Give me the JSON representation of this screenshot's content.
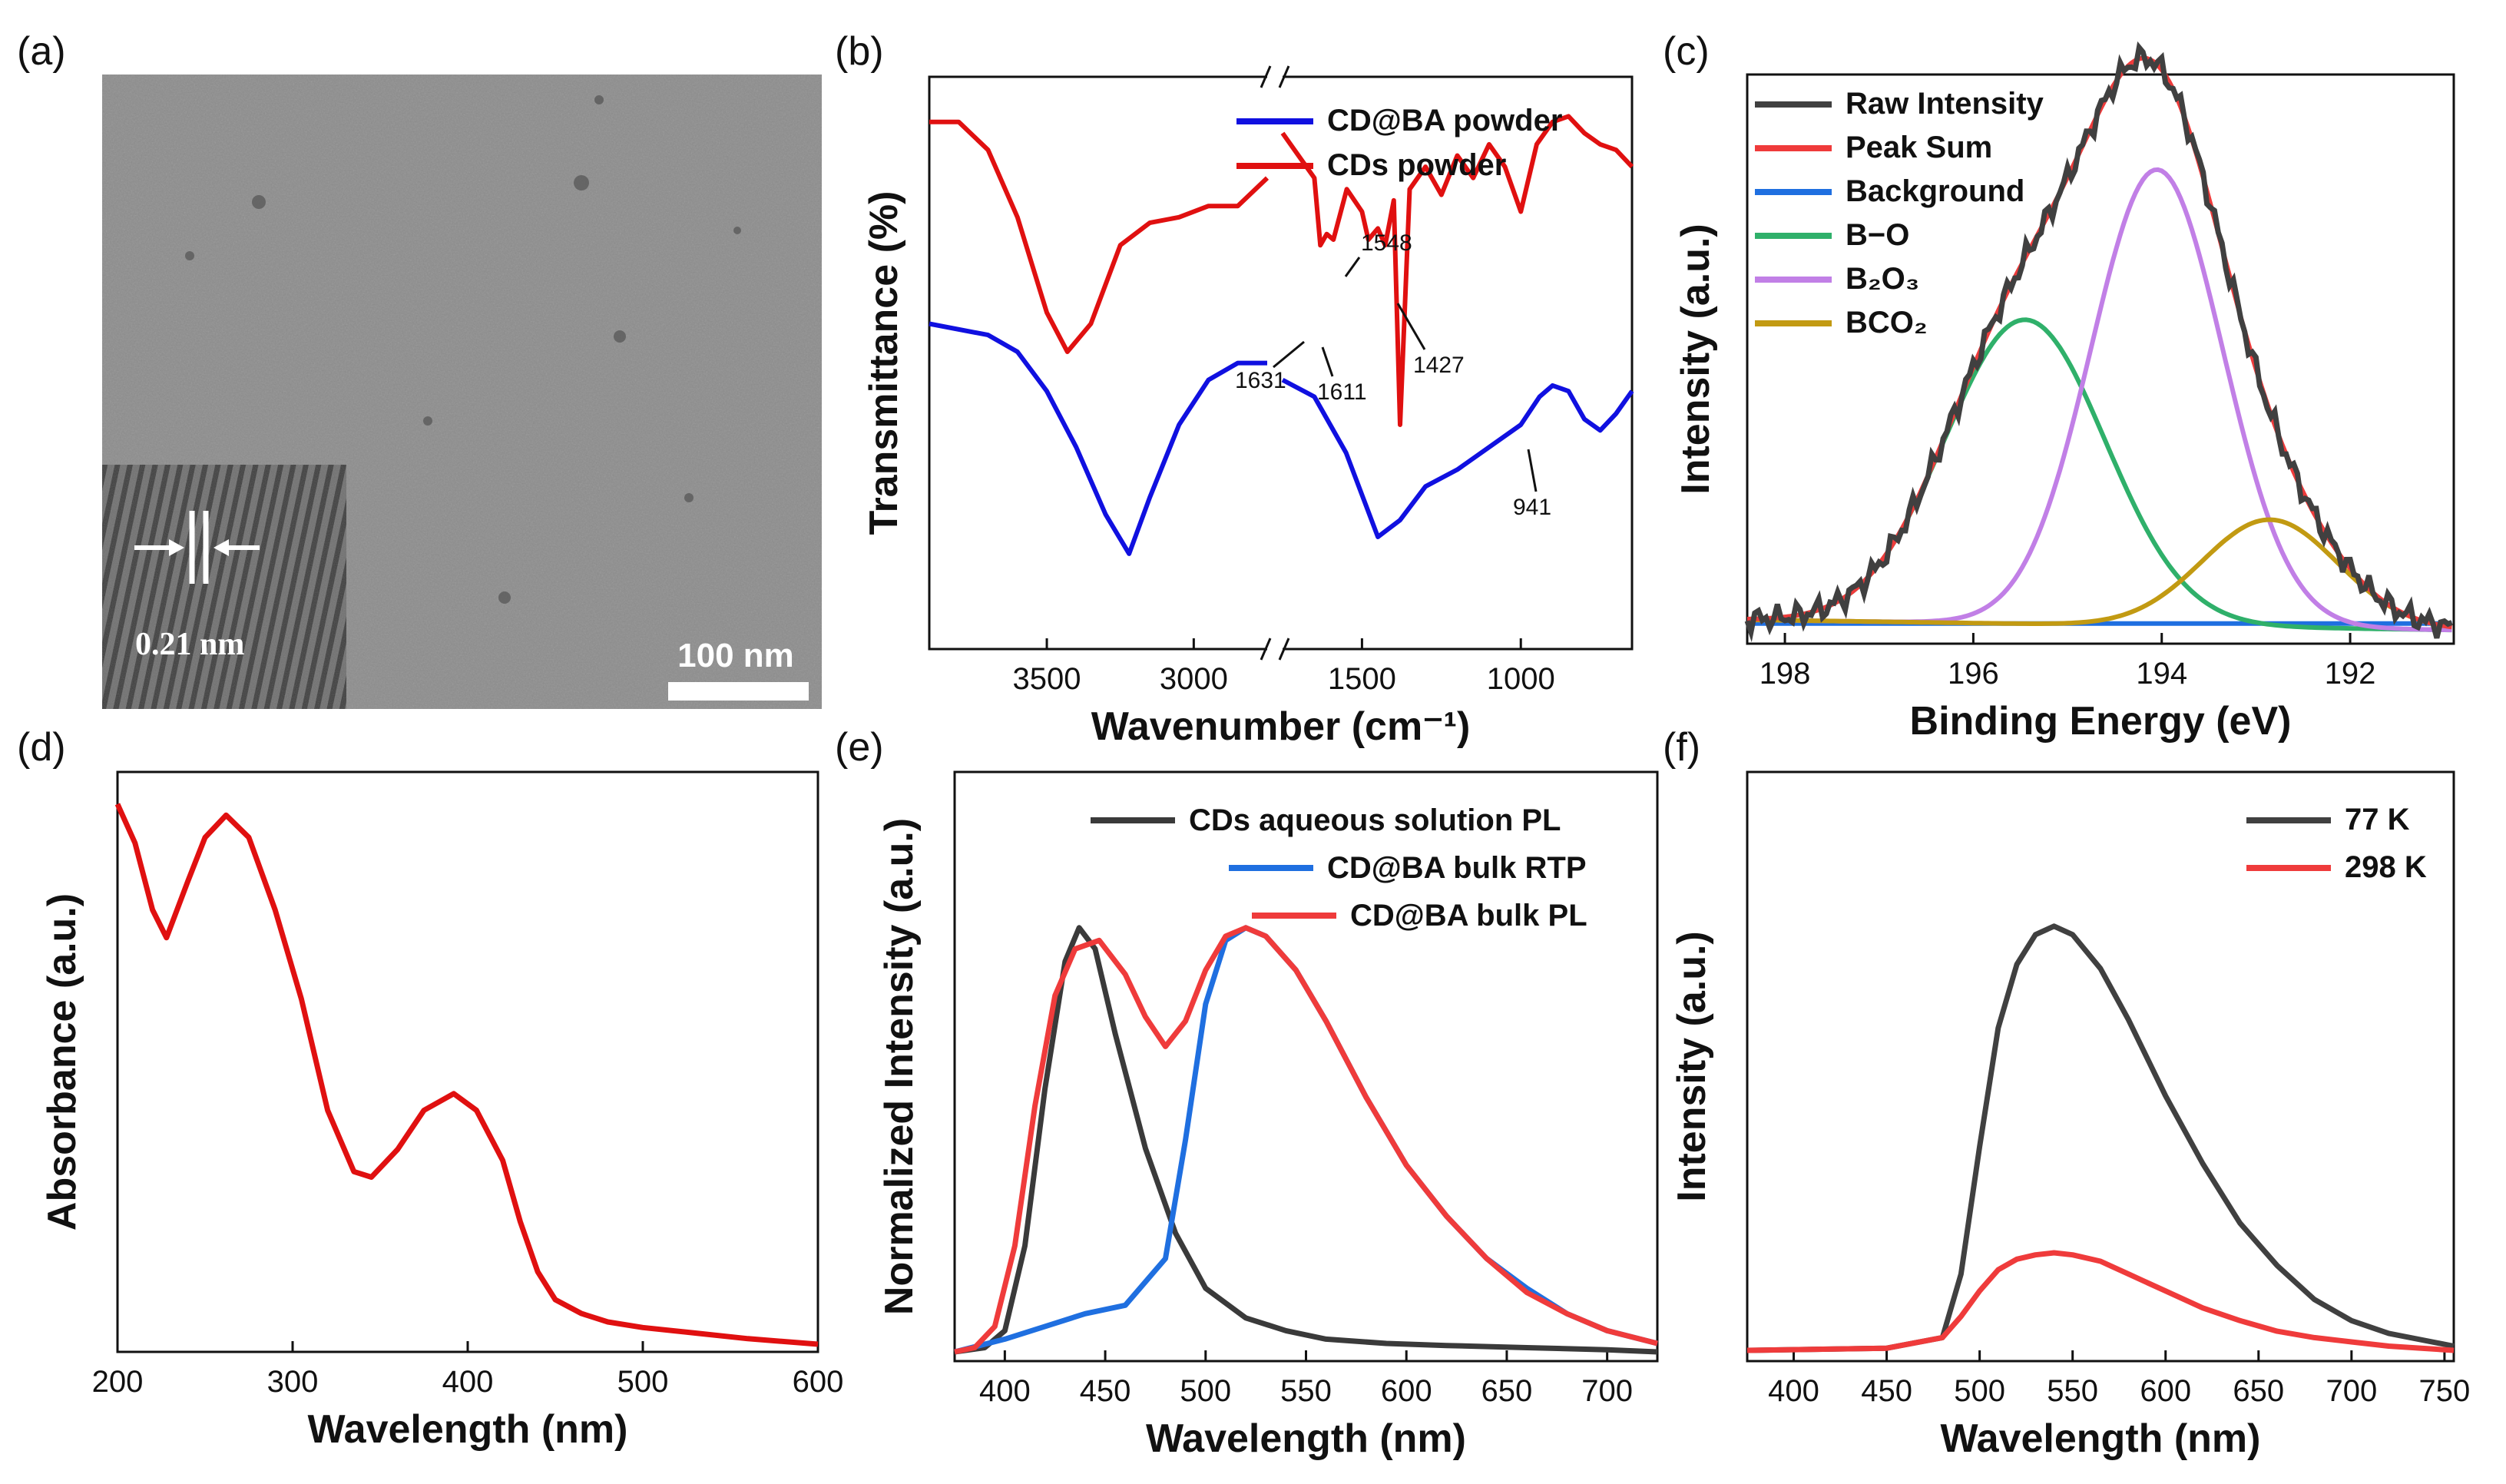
{
  "figure": {
    "panels": [
      {
        "id": "a",
        "label": "(a)",
        "scale_bar": "100 nm",
        "inset_label": "0.21 nm"
      },
      {
        "id": "b",
        "label": "(b)",
        "annotations": [
          "1548",
          "1631",
          "1611",
          "1427",
          "941"
        ]
      },
      {
        "id": "c",
        "label": "(c)"
      },
      {
        "id": "d",
        "label": "(d)"
      },
      {
        "id": "e",
        "label": "(e)"
      },
      {
        "id": "f",
        "label": "(f)"
      }
    ]
  },
  "chart_data": [
    {
      "panel": "b",
      "type": "line",
      "xlabel": "Wavenumber (cm⁻¹)",
      "ylabel": "Transmittance (%)",
      "x_ticks": [
        3500,
        3000,
        1500,
        1000
      ],
      "axis_break": "between 2750 and 1750 cm-1",
      "legend": "top-right",
      "series": [
        {
          "name": "CD@BA powder",
          "color": "#1010e0",
          "x": [
            3900,
            3700,
            3600,
            3500,
            3400,
            3300,
            3220,
            3150,
            3050,
            2950,
            2850,
            2750,
            1750,
            1650,
            1550,
            1450,
            1380,
            1300,
            1200,
            1100,
            1000,
            941,
            900,
            850,
            800,
            750,
            700,
            650
          ],
          "y": [
            0.58,
            0.56,
            0.53,
            0.46,
            0.36,
            0.24,
            0.17,
            0.27,
            0.4,
            0.48,
            0.51,
            0.51,
            0.48,
            0.45,
            0.35,
            0.2,
            0.23,
            0.29,
            0.32,
            0.36,
            0.4,
            0.45,
            0.47,
            0.46,
            0.41,
            0.39,
            0.42,
            0.46
          ]
        },
        {
          "name": "CDs powder",
          "color": "#e01010",
          "x": [
            3900,
            3800,
            3700,
            3600,
            3500,
            3430,
            3350,
            3250,
            3150,
            3050,
            2950,
            2850,
            2750,
            1750,
            1700,
            1650,
            1631,
            1611,
            1590,
            1548,
            1500,
            1480,
            1450,
            1427,
            1400,
            1380,
            1350,
            1300,
            1250,
            1200,
            1150,
            1100,
            1050,
            1000,
            950,
            900,
            850,
            800,
            750,
            700,
            650
          ],
          "y": [
            0.94,
            0.94,
            0.89,
            0.77,
            0.6,
            0.53,
            0.58,
            0.72,
            0.76,
            0.77,
            0.79,
            0.79,
            0.84,
            0.92,
            0.88,
            0.84,
            0.72,
            0.74,
            0.73,
            0.82,
            0.78,
            0.73,
            0.75,
            0.72,
            0.8,
            0.4,
            0.82,
            0.86,
            0.81,
            0.88,
            0.84,
            0.9,
            0.86,
            0.78,
            0.9,
            0.94,
            0.95,
            0.92,
            0.9,
            0.89,
            0.86
          ]
        }
      ]
    },
    {
      "panel": "c",
      "type": "line",
      "xlabel": "Binding Energy (eV)",
      "ylabel": "Intensity (a.u.)",
      "xlim": [
        198.4,
        190.9
      ],
      "x_ticks": [
        198,
        196,
        194,
        192
      ],
      "legend": "top-left",
      "series": [
        {
          "name": "Raw Intensity",
          "color": "#404040",
          "peaks": [
            [
              195.45,
              0.48,
              0.85
            ],
            [
              194.05,
              0.72,
              0.7
            ],
            [
              192.85,
              0.17,
              0.72
            ]
          ]
        },
        {
          "name": "Peak Sum",
          "color": "#ef3b3b",
          "peaks": [
            [
              195.45,
              0.48,
              0.85
            ],
            [
              194.05,
              0.72,
              0.7
            ],
            [
              192.85,
              0.17,
              0.72
            ]
          ]
        },
        {
          "name": "Background",
          "color": "#1f6fe0",
          "value": 0.01
        },
        {
          "name": "B−O",
          "color": "#2fb06a",
          "peaks": [
            [
              195.45,
              0.48,
              0.85
            ]
          ]
        },
        {
          "name": "B₂O₃",
          "color": "#c17fe6",
          "peaks": [
            [
              194.05,
              0.72,
              0.7
            ]
          ]
        },
        {
          "name": "BCO₂",
          "color": "#c29a12",
          "peaks": [
            [
              192.85,
              0.17,
              0.72
            ]
          ]
        }
      ]
    },
    {
      "panel": "d",
      "type": "line",
      "xlabel": "Wavelength (nm)",
      "ylabel": "Absorbance (a.u.)",
      "xlim": [
        200,
        600
      ],
      "x_ticks": [
        200,
        300,
        400,
        500,
        600
      ],
      "series": [
        {
          "name": "",
          "color": "#e01010",
          "x": [
            200,
            210,
            220,
            228,
            240,
            250,
            262,
            275,
            290,
            305,
            320,
            335,
            345,
            360,
            375,
            392,
            405,
            420,
            430,
            440,
            450,
            465,
            480,
            500,
            530,
            560,
            600
          ],
          "y": [
            0.97,
            0.9,
            0.78,
            0.73,
            0.83,
            0.91,
            0.95,
            0.91,
            0.78,
            0.62,
            0.42,
            0.31,
            0.3,
            0.35,
            0.42,
            0.45,
            0.42,
            0.33,
            0.22,
            0.13,
            0.08,
            0.055,
            0.04,
            0.03,
            0.02,
            0.01,
            0.0
          ]
        }
      ]
    },
    {
      "panel": "e",
      "type": "line",
      "xlabel": "Wavelength (nm)",
      "ylabel": "Normalized Intensity (a.u.)",
      "xlim": [
        375,
        725
      ],
      "x_ticks": [
        400,
        450,
        500,
        550,
        600,
        650,
        700
      ],
      "legend": "top-right",
      "series": [
        {
          "name": "CDs aqueous solution PL",
          "color": "#3a3a3a",
          "x": [
            375,
            390,
            400,
            410,
            420,
            430,
            437,
            445,
            455,
            470,
            485,
            500,
            520,
            540,
            560,
            590,
            620,
            660,
            700,
            725
          ],
          "y": [
            0.0,
            0.01,
            0.05,
            0.25,
            0.62,
            0.92,
            1.0,
            0.95,
            0.75,
            0.48,
            0.28,
            0.15,
            0.08,
            0.05,
            0.03,
            0.02,
            0.015,
            0.01,
            0.005,
            0.0
          ]
        },
        {
          "name": "CD@BA bulk RTP",
          "color": "#1f6fe0",
          "x": [
            375,
            400,
            420,
            440,
            460,
            480,
            490,
            500,
            510,
            520,
            530,
            545,
            560,
            580,
            600,
            620,
            640,
            660,
            680,
            700,
            725
          ],
          "y": [
            0.0,
            0.03,
            0.06,
            0.09,
            0.11,
            0.22,
            0.5,
            0.82,
            0.97,
            1.0,
            0.98,
            0.9,
            0.78,
            0.6,
            0.44,
            0.32,
            0.22,
            0.15,
            0.09,
            0.05,
            0.02
          ]
        },
        {
          "name": "CD@BA bulk PL",
          "color": "#ef3b3b",
          "x": [
            375,
            385,
            395,
            405,
            415,
            425,
            435,
            447,
            460,
            470,
            480,
            490,
            500,
            510,
            520,
            530,
            545,
            560,
            580,
            600,
            620,
            640,
            660,
            680,
            700,
            725
          ],
          "y": [
            0.0,
            0.01,
            0.06,
            0.25,
            0.58,
            0.84,
            0.95,
            0.97,
            0.89,
            0.79,
            0.72,
            0.78,
            0.9,
            0.98,
            1.0,
            0.98,
            0.9,
            0.78,
            0.6,
            0.44,
            0.32,
            0.22,
            0.14,
            0.09,
            0.05,
            0.02
          ]
        }
      ]
    },
    {
      "panel": "f",
      "type": "line",
      "xlabel": "Wavelength (nm)",
      "ylabel": "Intensity (a.u.)",
      "xlim": [
        375,
        755
      ],
      "x_ticks": [
        400,
        450,
        500,
        550,
        600,
        650,
        700,
        750
      ],
      "legend": "top-right",
      "series": [
        {
          "name": "77 K",
          "color": "#404040",
          "x": [
            375,
            450,
            480,
            490,
            500,
            510,
            520,
            530,
            540,
            550,
            565,
            580,
            600,
            620,
            640,
            660,
            680,
            700,
            720,
            755
          ],
          "y": [
            0.0,
            0.005,
            0.03,
            0.18,
            0.48,
            0.76,
            0.91,
            0.98,
            1.0,
            0.98,
            0.9,
            0.78,
            0.6,
            0.44,
            0.3,
            0.2,
            0.12,
            0.07,
            0.04,
            0.01
          ]
        },
        {
          "name": "298 K",
          "color": "#ef3b3b",
          "x": [
            375,
            450,
            480,
            490,
            500,
            510,
            520,
            530,
            540,
            550,
            565,
            580,
            600,
            620,
            640,
            660,
            680,
            700,
            720,
            755
          ],
          "y": [
            0.0,
            0.005,
            0.03,
            0.08,
            0.14,
            0.19,
            0.215,
            0.225,
            0.23,
            0.225,
            0.21,
            0.18,
            0.14,
            0.1,
            0.07,
            0.045,
            0.03,
            0.02,
            0.01,
            0.0
          ]
        }
      ]
    }
  ]
}
